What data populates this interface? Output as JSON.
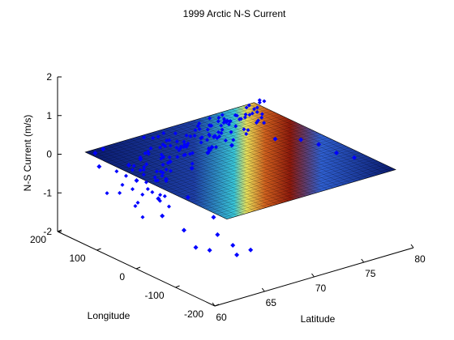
{
  "colors": {
    "background": "#ffffff",
    "axis": "#000000",
    "scatter": "#0000ff",
    "surface_low": "#0a1a6e",
    "surface_mid": "#2f5fd0",
    "surface_high": "#b0200e"
  },
  "chart_data": {
    "type": "scatter",
    "subtype": "3d-surface-with-scatter",
    "title": "1999 Arctic N-S Current",
    "xlabel": "Latitude",
    "ylabel": "Longitude",
    "zlabel": "N-S Current (m/s)",
    "xlim": [
      60,
      80
    ],
    "ylim": [
      -200,
      200
    ],
    "zlim": [
      -2,
      2
    ],
    "x_ticks": [
      "60",
      "65",
      "70",
      "75",
      "80"
    ],
    "y_ticks": [
      "-200",
      "-100",
      "0",
      "100",
      "200"
    ],
    "z_ticks": [
      "-2",
      "-1",
      "0",
      "1",
      "2"
    ],
    "grid": false,
    "surface": {
      "colormap": "jet",
      "lat_range": [
        62,
        79
      ],
      "lon_range": [
        -180,
        180
      ],
      "peak_lon": -40
    },
    "series": [
      {
        "marker": "diamond",
        "color": "#0000ff",
        "points": [
          {
            "x": 63,
            "y": 180,
            "z": -0.1
          },
          {
            "x": 63,
            "y": 170,
            "z": -0.4
          },
          {
            "x": 63,
            "y": 160,
            "z": 0.1
          },
          {
            "x": 64,
            "y": 120,
            "z": -0.2
          },
          {
            "x": 64,
            "y": 100,
            "z": -0.5
          },
          {
            "x": 64,
            "y": 90,
            "z": 0.1
          },
          {
            "x": 65,
            "y": 70,
            "z": -0.9
          },
          {
            "x": 65,
            "y": 60,
            "z": -1.3
          },
          {
            "x": 65,
            "y": 50,
            "z": -0.3
          },
          {
            "x": 65,
            "y": 40,
            "z": 0.2
          },
          {
            "x": 66,
            "y": 30,
            "z": -1.6
          },
          {
            "x": 66,
            "y": 20,
            "z": -0.7
          },
          {
            "x": 66,
            "y": 10,
            "z": 0.1
          },
          {
            "x": 66,
            "y": 0,
            "z": -1.9
          },
          {
            "x": 67,
            "y": -10,
            "z": -2.0
          },
          {
            "x": 67,
            "y": -20,
            "z": -1.1
          },
          {
            "x": 67,
            "y": -30,
            "z": -1.5
          },
          {
            "x": 68,
            "y": 20,
            "z": 0.3
          },
          {
            "x": 69,
            "y": 40,
            "z": 0.2
          },
          {
            "x": 70,
            "y": 60,
            "z": 0.1
          },
          {
            "x": 71,
            "y": 80,
            "z": 0.2
          },
          {
            "x": 72,
            "y": 60,
            "z": 0.0
          },
          {
            "x": 74,
            "y": 0,
            "z": 0.3
          },
          {
            "x": 75,
            "y": -40,
            "z": 0.4
          },
          {
            "x": 76,
            "y": -60,
            "z": 0.3
          },
          {
            "x": 77,
            "y": -80,
            "z": 0.1
          },
          {
            "x": 78,
            "y": -100,
            "z": 0.0
          },
          {
            "x": 63,
            "y": -170,
            "z": -0.8
          },
          {
            "x": 63,
            "y": -180,
            "z": -1.0
          },
          {
            "x": 64,
            "y": -190,
            "z": -0.9
          }
        ]
      }
    ]
  }
}
